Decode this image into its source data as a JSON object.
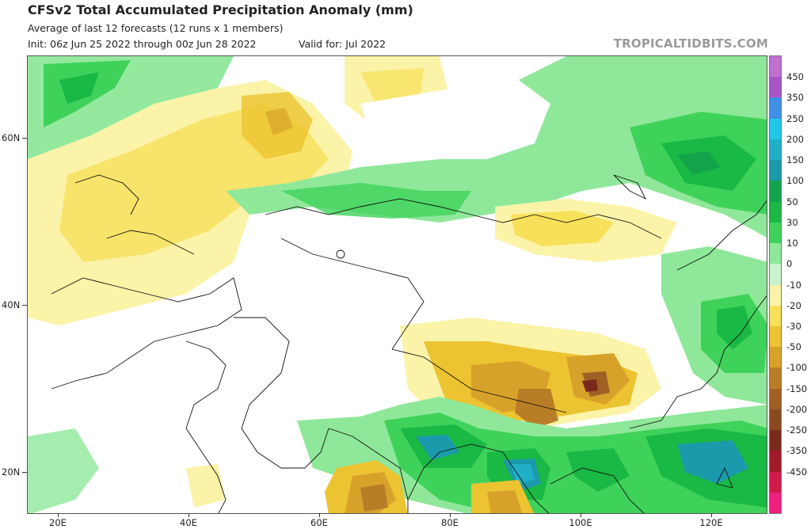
{
  "header": {
    "title": "CFSv2 Total Accumulated Precipitation Anomaly (mm)",
    "subtitle": "Average of last 12 forecasts (12 runs x 1 members)",
    "init": "Init: 06z Jun 25 2022 through 00z Jun 28 2022",
    "valid": "Valid for: Jul 2022",
    "brand": "TROPICALTIDBITS.COM"
  },
  "map": {
    "lat_labels": [
      "60N",
      "40N",
      "20N"
    ],
    "lon_labels": [
      "20E",
      "40E",
      "60E",
      "80E",
      "100E",
      "120E"
    ]
  },
  "colorbar": {
    "levels": [
      {
        "label": "450",
        "color": "#a855c8"
      },
      {
        "label": "350",
        "color": "#3f8fe6"
      },
      {
        "label": "250",
        "color": "#1fc8ea"
      },
      {
        "label": "200",
        "color": "#1fb0c8"
      },
      {
        "label": "150",
        "color": "#1a9aaa"
      },
      {
        "label": "100",
        "color": "#13a34a"
      },
      {
        "label": "50",
        "color": "#1ab844"
      },
      {
        "label": "30",
        "color": "#3fd25a"
      },
      {
        "label": "10",
        "color": "#8fe89a"
      },
      {
        "label": "0",
        "color": "#c9f3cd"
      },
      {
        "label": "-10",
        "color": "#fbf3a8"
      },
      {
        "label": "-20",
        "color": "#f7e05a"
      },
      {
        "label": "-30",
        "color": "#ecc330"
      },
      {
        "label": "-50",
        "color": "#d7a22a"
      },
      {
        "label": "-100",
        "color": "#b97d27"
      },
      {
        "label": "-150",
        "color": "#a06024"
      },
      {
        "label": "-200",
        "color": "#8a4a20"
      },
      {
        "label": "-250",
        "color": "#7a2a1c"
      },
      {
        "label": "-350",
        "color": "#a01a2a"
      },
      {
        "label": "-450",
        "color": "#d01a4a"
      }
    ],
    "top_color": "#c070d0",
    "bottom_color": "#ee2080"
  }
}
